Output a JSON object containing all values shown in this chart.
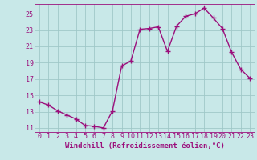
{
  "x": [
    0,
    1,
    2,
    3,
    4,
    5,
    6,
    7,
    8,
    9,
    10,
    11,
    12,
    13,
    14,
    15,
    16,
    17,
    18,
    19,
    20,
    21,
    22,
    23
  ],
  "y": [
    14.2,
    13.8,
    13.1,
    12.6,
    12.1,
    11.3,
    11.2,
    11.0,
    13.1,
    18.6,
    19.2,
    23.1,
    23.2,
    23.4,
    20.4,
    23.5,
    24.7,
    25.0,
    25.7,
    24.5,
    23.2,
    20.3,
    18.2,
    17.1
  ],
  "line_color": "#9b0f7c",
  "marker": "+",
  "marker_size": 4,
  "linewidth": 1.0,
  "bg_color": "#c8e8e8",
  "grid_color": "#a0c8c8",
  "xlabel": "Windchill (Refroidissement éolien,°C)",
  "xlabel_fontsize": 6.5,
  "tick_fontsize": 6,
  "yticks": [
    11,
    13,
    15,
    17,
    19,
    21,
    23,
    25
  ],
  "xticks": [
    0,
    1,
    2,
    3,
    4,
    5,
    6,
    7,
    8,
    9,
    10,
    11,
    12,
    13,
    14,
    15,
    16,
    17,
    18,
    19,
    20,
    21,
    22,
    23
  ],
  "ylim": [
    10.5,
    26.2
  ],
  "xlim": [
    -0.5,
    23.5
  ]
}
